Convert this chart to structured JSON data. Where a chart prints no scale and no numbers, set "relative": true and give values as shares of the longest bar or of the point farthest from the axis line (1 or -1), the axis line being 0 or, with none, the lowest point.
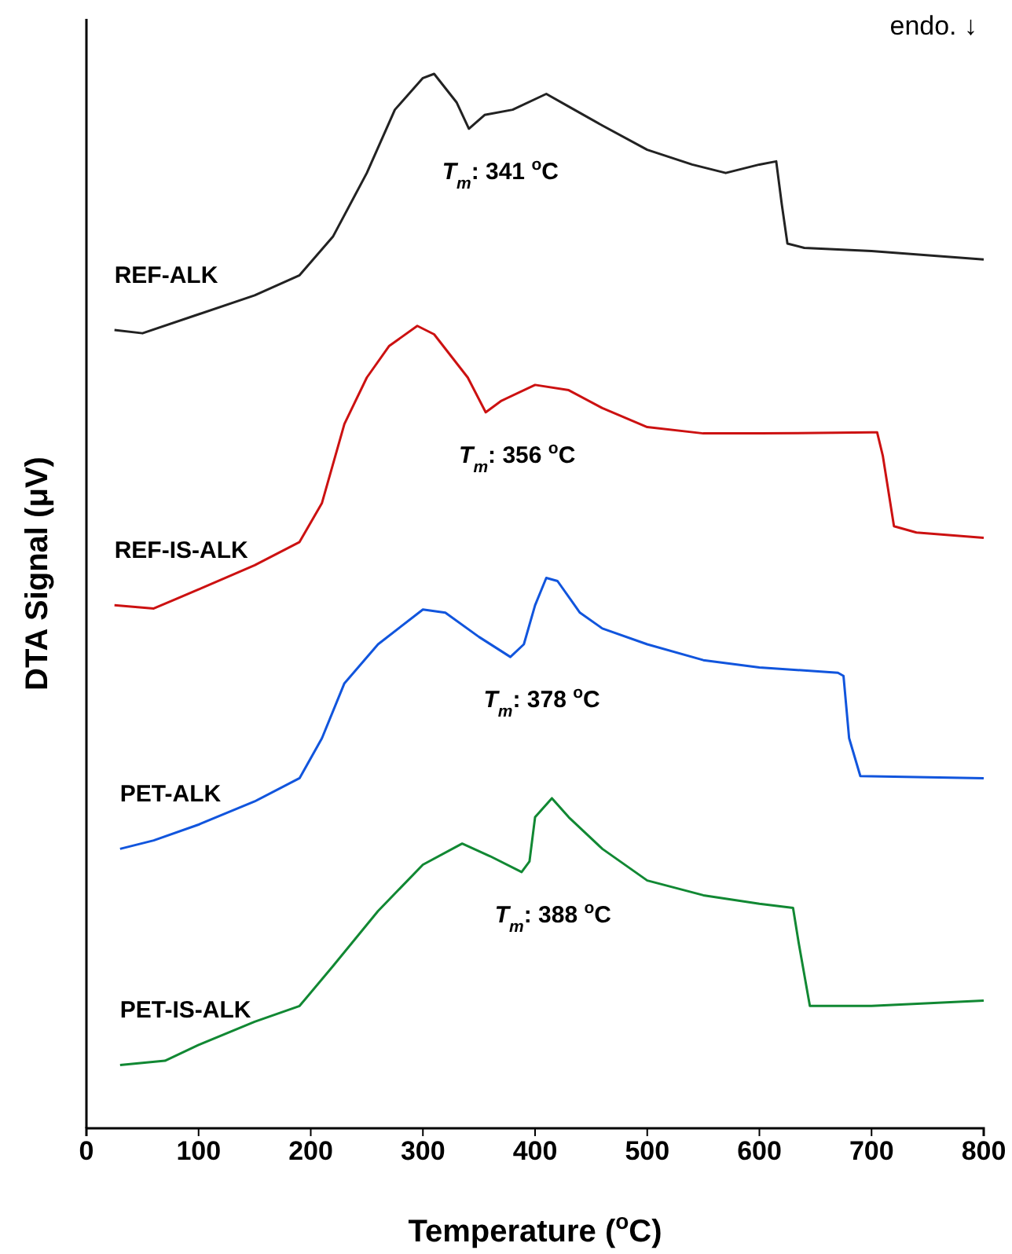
{
  "chart_data": {
    "type": "line",
    "relative": true,
    "xlabel": "Temperature ($^{o}$C)",
    "ylabel": "DTA Signal (μV)",
    "xlim": [
      0,
      800
    ],
    "xticks": [
      0,
      100,
      200,
      300,
      400,
      500,
      600,
      700,
      800
    ],
    "grid": false,
    "legend": false,
    "marker": "none",
    "line_style": "solid",
    "annotations": [
      "endo. ↓",
      {
        "text": "T$_{m}$: 341 $^{o}$C",
        "x": 341,
        "y": 0.948
      },
      {
        "text": "T$_{m}$: 356 $^{o}$C",
        "x": 356,
        "y": 0.679
      },
      {
        "text": "T$_{m}$: 378 $^{o}$C",
        "x": 378,
        "y": 0.447
      },
      {
        "text": "T$_{m}$: 388 $^{o}$C",
        "x": 388,
        "y": 0.243
      }
    ],
    "series": [
      {
        "name": "REF-ALK",
        "color": "#222222",
        "x": [
          25,
          50,
          100,
          150,
          190,
          220,
          250,
          275,
          300,
          310,
          330,
          341,
          355,
          380,
          410,
          430,
          460,
          500,
          540,
          570,
          600,
          615,
          620,
          625,
          640,
          700,
          800
        ],
        "values": [
          0.757,
          0.754,
          0.772,
          0.79,
          0.809,
          0.846,
          0.906,
          0.966,
          0.996,
          1,
          0.973,
          0.948,
          0.961,
          0.966,
          0.981,
          0.969,
          0.951,
          0.928,
          0.914,
          0.906,
          0.914,
          0.917,
          0.876,
          0.839,
          0.835,
          0.832,
          0.824
        ]
      },
      {
        "name": "REF-IS-ALK",
        "color": "#cc1111",
        "x": [
          25,
          60,
          100,
          150,
          190,
          210,
          230,
          250,
          270,
          295,
          310,
          340,
          356,
          370,
          400,
          430,
          460,
          500,
          550,
          600,
          700,
          705,
          710,
          720,
          740,
          800
        ],
        "values": [
          0.496,
          0.493,
          0.511,
          0.534,
          0.556,
          0.593,
          0.668,
          0.712,
          0.742,
          0.761,
          0.753,
          0.712,
          0.679,
          0.69,
          0.705,
          0.7,
          0.683,
          0.665,
          0.659,
          0.659,
          0.66,
          0.66,
          0.638,
          0.571,
          0.565,
          0.56
        ]
      },
      {
        "name": "PET-ALK",
        "color": "#1155dd",
        "x": [
          30,
          60,
          100,
          150,
          190,
          210,
          230,
          260,
          300,
          320,
          350,
          378,
          390,
          400,
          410,
          420,
          440,
          460,
          500,
          550,
          600,
          670,
          675,
          680,
          690,
          800
        ],
        "values": [
          0.265,
          0.273,
          0.288,
          0.31,
          0.332,
          0.37,
          0.422,
          0.459,
          0.492,
          0.489,
          0.466,
          0.447,
          0.459,
          0.496,
          0.522,
          0.519,
          0.489,
          0.474,
          0.459,
          0.444,
          0.437,
          0.432,
          0.429,
          0.37,
          0.334,
          0.332
        ]
      },
      {
        "name": "PET-IS-ALK",
        "color": "#118833",
        "x": [
          30,
          70,
          100,
          150,
          190,
          220,
          260,
          300,
          335,
          360,
          388,
          395,
          400,
          415,
          430,
          460,
          500,
          550,
          600,
          630,
          635,
          645,
          700,
          800
        ],
        "values": [
          0.06,
          0.064,
          0.079,
          0.101,
          0.116,
          0.154,
          0.206,
          0.25,
          0.27,
          0.258,
          0.243,
          0.253,
          0.295,
          0.313,
          0.295,
          0.265,
          0.235,
          0.221,
          0.213,
          0.209,
          0.176,
          0.116,
          0.116,
          0.121
        ]
      }
    ]
  }
}
